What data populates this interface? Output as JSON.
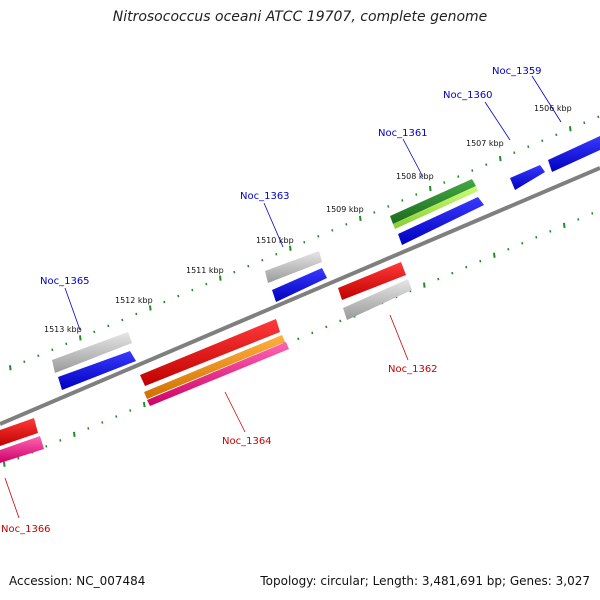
{
  "title": "Nitrosococcus oceani ATCC 19707, complete genome",
  "footer": {
    "accession": "Accession: NC_007484",
    "info": "Topology: circular; Length: 3,481,691 bp; Genes: 3,027"
  },
  "colors": {
    "backbone": "#808080",
    "tick": "#228B22",
    "label_forward": "#0000cc",
    "label_reverse": "#cc0000",
    "gray": "#bfbfbf",
    "blue": "#0000ff",
    "red": "#ff0000",
    "orange": "#ff9900",
    "magenta": "#ff3399",
    "green": "#2e8b2e",
    "lightgreen": "#a8e84a"
  },
  "kbp_labels": [
    "1506 kbp",
    "1507 kbp",
    "1508 kbp",
    "1509 kbp",
    "1510 kbp",
    "1511 kbp",
    "1512 kbp",
    "1513 kbp"
  ],
  "genes": [
    {
      "name": "Noc_1359",
      "strand": "forward"
    },
    {
      "name": "Noc_1360",
      "strand": "forward"
    },
    {
      "name": "Noc_1361",
      "strand": "forward"
    },
    {
      "name": "Noc_1362",
      "strand": "reverse"
    },
    {
      "name": "Noc_1363",
      "strand": "forward"
    },
    {
      "name": "Noc_1364",
      "strand": "reverse"
    },
    {
      "name": "Noc_1365",
      "strand": "forward"
    },
    {
      "name": "Noc_1366",
      "strand": "reverse"
    }
  ]
}
